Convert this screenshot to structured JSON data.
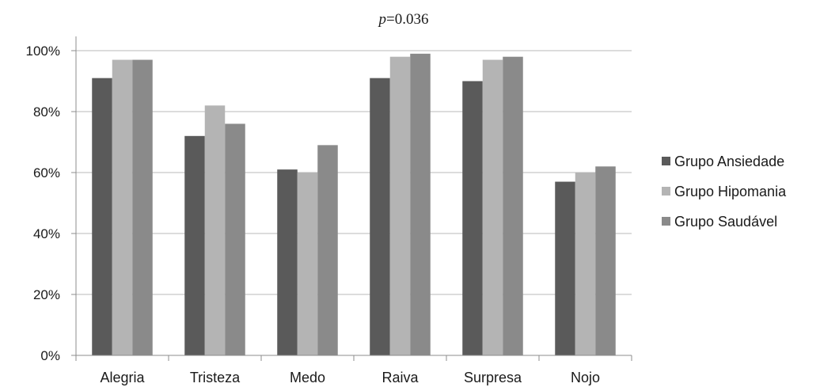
{
  "chart_data": {
    "type": "bar",
    "title_prefix": "p",
    "title_suffix": "=0.036",
    "categories": [
      "Alegria",
      "Tristeza",
      "Medo",
      "Raiva",
      "Surpresa",
      "Nojo"
    ],
    "series": [
      {
        "name": "Grupo Ansiedade",
        "color": "#5a5a5a",
        "values": [
          91,
          72,
          61,
          91,
          90,
          57
        ]
      },
      {
        "name": "Grupo Hipomania",
        "color": "#b4b4b4",
        "values": [
          97,
          82,
          60,
          98,
          97,
          60
        ]
      },
      {
        "name": "Grupo Saudável",
        "color": "#8a8a8a",
        "values": [
          97,
          76,
          69,
          99,
          98,
          62
        ]
      }
    ],
    "ylim": [
      0,
      100
    ],
    "yticks": [
      0,
      20,
      40,
      60,
      80,
      100
    ],
    "ytick_labels": [
      "0%",
      "20%",
      "40%",
      "60%",
      "80%",
      "100%"
    ],
    "grid": true,
    "legend_position": "right"
  }
}
